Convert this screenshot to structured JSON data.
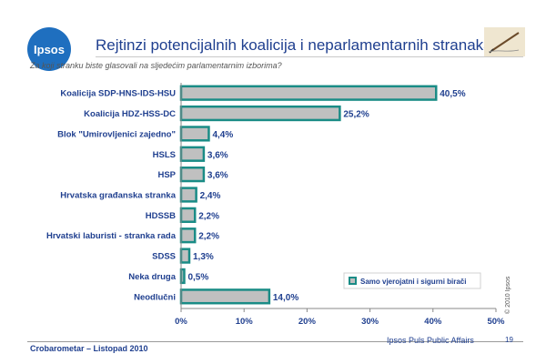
{
  "header": {
    "logo_text": "Ipsos",
    "title": "Rejtinzi potencijalnih koalicija i neparlamentarnih stranaka",
    "subtitle": "Za koji stranku biste glasovali na sljedećim parlamentarnim izborima?"
  },
  "footer": {
    "left": "Crobarometar – Listopad  2010",
    "right": "Ipsos Puls Public Affairs",
    "page": "19",
    "copyright": "© 2010 Ipsos"
  },
  "colors": {
    "bar_fill": "#c0c0c0",
    "bar_stroke": "#1a8c86",
    "text": "#1f3f8f"
  },
  "chart_data": {
    "type": "bar",
    "orientation": "horizontal",
    "categories": [
      "Koalicija SDP-HNS-IDS-HSU",
      "Koalicija HDZ-HSS-DC",
      "Blok \"Umirovljenici zajedno\"",
      "HSLS",
      "HSP",
      "Hrvatska građanska stranka",
      "HDSSB",
      "Hrvatski laburisti - stranka rada",
      "SDSS",
      "Neka druga",
      "Neodlučni"
    ],
    "values": [
      40.5,
      25.2,
      4.4,
      3.6,
      3.6,
      2.4,
      2.2,
      2.2,
      1.3,
      0.5,
      14.0
    ],
    "value_labels": [
      "40,5%",
      "25,2%",
      "4,4%",
      "3,6%",
      "3,6%",
      "2,4%",
      "2,2%",
      "2,2%",
      "1,3%",
      "0,5%",
      "14,0%"
    ],
    "series": [
      {
        "name": "Samo vjerojatni i sigurni birači",
        "values": [
          40.5,
          25.2,
          4.4,
          3.6,
          3.6,
          2.4,
          2.2,
          2.2,
          1.3,
          0.5,
          14.0
        ]
      }
    ],
    "xlim": [
      0,
      50
    ],
    "x_ticks": [
      "0%",
      "10%",
      "20%",
      "30%",
      "40%",
      "50%"
    ],
    "legend_position": "bottom-right",
    "grid": false
  }
}
